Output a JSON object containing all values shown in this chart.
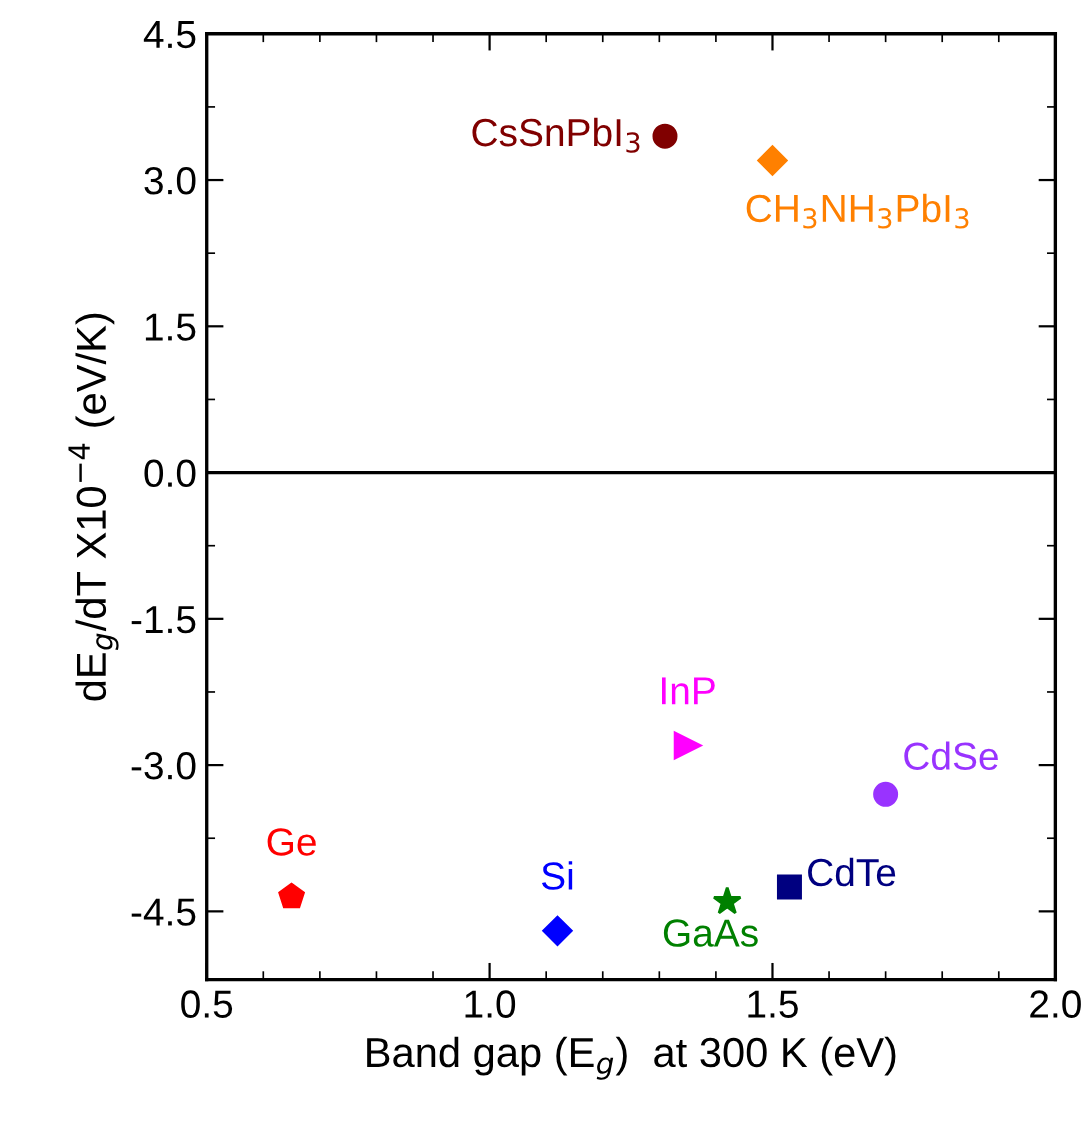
{
  "chart_data": {
    "type": "scatter",
    "xlabel": "Band gap (E$_{g}$)  at 300 K (eV)",
    "ylabel": "dE$_{g}$/dT X10$^{−4}$ (eV/K)",
    "xlim": [
      0.5,
      2.0
    ],
    "ylim": [
      -5.2,
      4.5
    ],
    "xticks": [
      {
        "value": 0.5,
        "label": "0.5"
      },
      {
        "value": 1.0,
        "label": "1.0"
      },
      {
        "value": 1.5,
        "label": "1.5"
      },
      {
        "value": 2.0,
        "label": "2.0"
      }
    ],
    "yticks": [
      {
        "value": -4.5,
        "label": "-4.5"
      },
      {
        "value": -3.0,
        "label": "-3.0"
      },
      {
        "value": -1.5,
        "label": "-1.5"
      },
      {
        "value": 0.0,
        "label": "0.0"
      },
      {
        "value": 1.5,
        "label": "1.5"
      },
      {
        "value": 3.0,
        "label": "3.0"
      },
      {
        "value": 4.5,
        "label": "4.5"
      }
    ],
    "grid": false,
    "legend": false,
    "ref_lines": [
      {
        "axis": "y",
        "value": 0,
        "color": "#000000",
        "line_style": "solid"
      }
    ],
    "series": [
      {
        "name": "CsSnPbI$_{3}$",
        "color": "#800000",
        "marker": "circle",
        "x": [
          1.31
        ],
        "values": [
          3.45
        ]
      },
      {
        "name": "CH$_{3}$NH$_{3}$PbI$_{3}$",
        "color": "#ff8000",
        "marker": "diamond",
        "x": [
          1.5
        ],
        "values": [
          3.2
        ]
      },
      {
        "name": "InP",
        "color": "#ff00ff",
        "marker": "triangle",
        "x": [
          1.35
        ],
        "values": [
          -2.8
        ]
      },
      {
        "name": "CdSe",
        "color": "#9933ff",
        "marker": "circle",
        "x": [
          1.7
        ],
        "values": [
          -3.3
        ]
      },
      {
        "name": "Ge",
        "color": "#ff0000",
        "x": [
          0.65
        ],
        "values": [
          -4.35
        ]
      },
      {
        "name": "Si",
        "color": "#0000ff",
        "marker": "diamond",
        "x": [
          1.12
        ],
        "values": [
          -4.7
        ]
      },
      {
        "name": "GaAs",
        "color": "#008000",
        "marker": "star",
        "x": [
          1.42
        ],
        "values": [
          -4.4
        ]
      },
      {
        "name": "CdTe",
        "color": "#000080",
        "marker": "square",
        "x": [
          1.53
        ],
        "values": [
          -4.25
        ]
      }
    ]
  }
}
